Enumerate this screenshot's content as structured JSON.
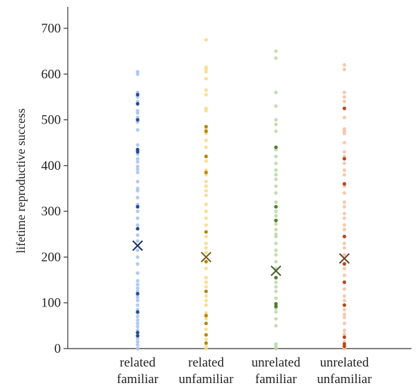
{
  "chart_data": {
    "type": "scatter",
    "ylabel": "lifetime reproductive success",
    "xlabel": "",
    "ylim": [
      0,
      700
    ],
    "yticks": [
      0,
      100,
      200,
      300,
      400,
      500,
      600,
      700
    ],
    "ytick_labels": [
      "0",
      "100",
      "200",
      "300",
      "400",
      "500",
      "600",
      "700"
    ],
    "grid": false,
    "legend": "none",
    "categories": [
      [
        "related",
        "familiar"
      ],
      [
        "related",
        "unfamiliar"
      ],
      [
        "unrelated",
        "familiar"
      ],
      [
        "unrelated",
        "unfamiliar"
      ]
    ],
    "series": [
      {
        "colors": {
          "light": "#a9c4ea",
          "dark": "#2b4a8f",
          "mean": "#1f2f66"
        },
        "mean": 225,
        "values": [
          0,
          8,
          15,
          22,
          28,
          35,
          40,
          48,
          55,
          62,
          70,
          78,
          85,
          95,
          105,
          112,
          118,
          125,
          132,
          140,
          148,
          165,
          185,
          200,
          215,
          235,
          248,
          262,
          270,
          285,
          300,
          310,
          315,
          330,
          345,
          350,
          365,
          385,
          392,
          398,
          408,
          415,
          425,
          430,
          435,
          445,
          478,
          495,
          500,
          505,
          515,
          520,
          535,
          540,
          550,
          555,
          560,
          600,
          605
        ],
        "dark_values": [
          28,
          35,
          80,
          120,
          262,
          310,
          430,
          435,
          500,
          535,
          555
        ]
      },
      {
        "colors": {
          "light": "#f7dc87",
          "dark": "#b8860b",
          "mean": "#7a5c12"
        },
        "mean": 200,
        "values": [
          0,
          5,
          12,
          20,
          30,
          42,
          55,
          65,
          72,
          78,
          95,
          105,
          115,
          125,
          135,
          145,
          155,
          175,
          190,
          210,
          220,
          230,
          245,
          255,
          270,
          285,
          300,
          315,
          335,
          345,
          355,
          365,
          380,
          390,
          410,
          420,
          440,
          455,
          470,
          480,
          485,
          520,
          525,
          555,
          565,
          590,
          605,
          610,
          615,
          675
        ],
        "dark_values": [
          12,
          30,
          55,
          72,
          125,
          190,
          255,
          385,
          420,
          475,
          485
        ]
      },
      {
        "colors": {
          "light": "#bcd9a8",
          "dark": "#4e7f2c",
          "mean": "#3f5c2a"
        },
        "mean": 170,
        "values": [
          0,
          5,
          10,
          50,
          65,
          80,
          88,
          92,
          95,
          98,
          110,
          125,
          135,
          145,
          155,
          175,
          190,
          205,
          215,
          230,
          245,
          250,
          260,
          272,
          280,
          290,
          300,
          310,
          320,
          340,
          355,
          370,
          380,
          390,
          405,
          420,
          435,
          440,
          475,
          490,
          500,
          530,
          560,
          635,
          650
        ],
        "dark_values": [
          92,
          98,
          155,
          280,
          310,
          440
        ]
      },
      {
        "colors": {
          "light": "#f4c3a8",
          "dark": "#b5461c",
          "mean": "#6b3a22"
        },
        "mean": 197,
        "values": [
          0,
          5,
          10,
          15,
          25,
          32,
          40,
          55,
          68,
          75,
          85,
          95,
          105,
          115,
          130,
          145,
          160,
          175,
          185,
          205,
          220,
          230,
          245,
          260,
          270,
          285,
          295,
          310,
          320,
          340,
          355,
          360,
          380,
          390,
          405,
          415,
          420,
          430,
          450,
          470,
          475,
          480,
          505,
          525,
          540,
          550,
          560,
          610,
          620
        ],
        "dark_values": [
          5,
          10,
          25,
          95,
          145,
          185,
          245,
          360,
          415,
          525
        ]
      }
    ]
  }
}
